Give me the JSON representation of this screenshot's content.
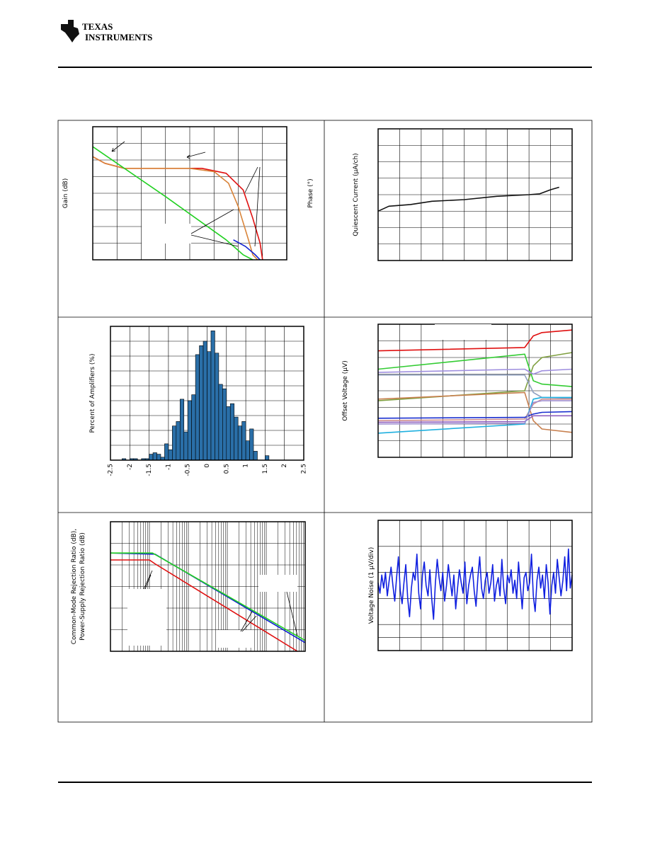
{
  "header": {
    "logo_line1": "TEXAS",
    "logo_line2": "INSTRUMENTS"
  },
  "chart_data": [
    {
      "type": "line",
      "y_label": "Gain (dB)",
      "y2_label": "Phase (°)",
      "xlim": [
        0,
        8
      ],
      "ylim": [
        0,
        8
      ],
      "xticks": [
        0,
        1,
        2,
        3,
        4,
        5,
        6,
        7,
        8
      ],
      "yticks": [
        0,
        1,
        2,
        3,
        4,
        5,
        6,
        7,
        8
      ],
      "grid": true,
      "series": [
        {
          "color": "#e01010",
          "x": [
            0,
            0.5,
            1.3,
            4.5,
            5.5,
            6.2,
            6.6,
            6.9,
            7.0
          ],
          "values": [
            6.2,
            5.8,
            5.5,
            5.5,
            5.2,
            4.2,
            2.5,
            1.0,
            0
          ]
        },
        {
          "color": "#d9843a",
          "x": [
            0,
            0.5,
            1.3,
            4.0,
            5.0,
            5.6,
            6.0,
            6.4,
            6.6,
            6.8
          ],
          "values": [
            6.2,
            5.8,
            5.5,
            5.5,
            5.3,
            4.6,
            3.2,
            1.3,
            0.3,
            0
          ]
        },
        {
          "color": "#1020d0",
          "x": [
            5.8,
            6.3,
            6.7,
            6.9
          ],
          "values": [
            1.2,
            0.8,
            0.3,
            0
          ]
        },
        {
          "color": "#22d022",
          "x": [
            0,
            3,
            5.5,
            6.2,
            6.6
          ],
          "values": [
            6.8,
            3.8,
            1.2,
            0.3,
            0
          ]
        }
      ]
    },
    {
      "type": "line",
      "y_label": "Quiescent Current (μA/ch)",
      "xlim": [
        0,
        9
      ],
      "ylim": [
        0,
        8
      ],
      "xticks": [
        0,
        1,
        2,
        3,
        4,
        5,
        6,
        7,
        8,
        9
      ],
      "yticks": [
        0,
        1,
        2,
        3,
        4,
        5,
        6,
        7,
        8
      ],
      "grid": true,
      "series": [
        {
          "color": "#111111",
          "x": [
            0,
            0.5,
            1.5,
            2.5,
            4,
            5.5,
            7,
            7.5,
            8,
            8.4
          ],
          "values": [
            3.0,
            3.3,
            3.4,
            3.6,
            3.7,
            3.9,
            4.0,
            4.05,
            4.3,
            4.45
          ]
        }
      ]
    },
    {
      "type": "histogram",
      "y_label": "Percent of Amplifiers (%)",
      "color": "#2a6fa8",
      "xlim": [
        -2.5,
        2.5
      ],
      "ylim": [
        0,
        9
      ],
      "xticks": [
        -2.5,
        -2,
        -1.5,
        -1,
        -0.5,
        0,
        0.5,
        1,
        1.5,
        2,
        2.5
      ],
      "xtick_labels": true,
      "yticks": [
        0,
        1,
        2,
        3,
        4,
        5,
        6,
        7,
        8,
        9
      ],
      "grid": true,
      "bins": [
        -2.2,
        -2.1,
        -2.0,
        -1.9,
        -1.8,
        -1.7,
        -1.6,
        -1.5,
        -1.4,
        -1.3,
        -1.2,
        -1.1,
        -1.0,
        -0.9,
        -0.8,
        -0.7,
        -0.6,
        -0.5,
        -0.4,
        -0.3,
        -0.2,
        -0.1,
        0,
        0.1,
        0.2,
        0.3,
        0.4,
        0.5,
        0.6,
        0.7,
        0.8,
        0.9,
        1.0,
        1.1,
        1.2,
        1.3,
        1.4,
        1.5,
        1.6
      ],
      "values": [
        0.1,
        0,
        0.1,
        0.1,
        0,
        0.1,
        0.1,
        0.4,
        0.5,
        0.4,
        0.2,
        1.1,
        0.7,
        2.3,
        2.6,
        4.1,
        1.9,
        4.0,
        4.4,
        7.1,
        7.7,
        8.0,
        7.3,
        8.7,
        7.2,
        5.1,
        4.8,
        3.6,
        3.8,
        2.9,
        2.3,
        2.6,
        1.3,
        2.1,
        0.6,
        0,
        0,
        0.3
      ]
    },
    {
      "type": "line",
      "y_label": "Offset Voltage (μV)",
      "xlim": [
        0,
        9
      ],
      "ylim": [
        0,
        8
      ],
      "xticks": [
        0,
        1,
        2,
        3,
        4,
        5,
        6,
        7,
        8,
        9
      ],
      "yticks": [
        0,
        1,
        2,
        3,
        4,
        5,
        6,
        7,
        8
      ],
      "grid": true,
      "series": [
        {
          "color": "#e01010",
          "x": [
            0,
            6.8,
            7.2,
            7.6,
            9
          ],
          "values": [
            6.4,
            6.6,
            7.3,
            7.5,
            7.65
          ]
        },
        {
          "color": "#33cc33",
          "x": [
            0,
            6.8,
            7.2,
            7.6,
            9
          ],
          "values": [
            5.3,
            6.2,
            4.6,
            4.4,
            4.25
          ]
        },
        {
          "color": "#7f9f3f",
          "x": [
            0,
            6.8,
            7.2,
            7.6,
            9
          ],
          "values": [
            3.4,
            4.0,
            5.5,
            6.0,
            6.3
          ]
        },
        {
          "color": "#9f8fdf",
          "x": [
            0,
            6.8,
            7.2,
            7.6,
            9
          ],
          "values": [
            5.1,
            5.3,
            5.0,
            5.2,
            5.3
          ]
        },
        {
          "color": "#8f9fbf",
          "x": [
            0,
            6.8,
            7.2,
            7.6,
            9
          ],
          "values": [
            4.95,
            4.95,
            3.9,
            3.6,
            3.55
          ]
        },
        {
          "color": "#c8804f",
          "x": [
            0,
            6.8,
            7.2,
            7.6,
            9
          ],
          "values": [
            3.5,
            3.9,
            2.2,
            1.7,
            1.5
          ]
        },
        {
          "color": "#cf8f8f",
          "x": [
            0,
            6.8,
            7.2,
            7.6,
            9
          ],
          "values": [
            2.2,
            2.3,
            3.2,
            3.5,
            3.5
          ]
        },
        {
          "color": "#1a2fcf",
          "x": [
            0,
            6.8,
            7.2,
            7.6,
            9
          ],
          "values": [
            2.35,
            2.4,
            2.6,
            2.7,
            2.75
          ]
        },
        {
          "color": "#8f5fbf",
          "x": [
            0,
            6.8,
            7.2,
            7.6,
            9
          ],
          "values": [
            2.1,
            2.15,
            2.5,
            2.5,
            2.5
          ]
        },
        {
          "color": "#1fb0df",
          "x": [
            0,
            6.8,
            7.2,
            7.6,
            9
          ],
          "values": [
            1.45,
            2.0,
            3.5,
            3.6,
            3.6
          ]
        },
        {
          "color": "#a08fd0",
          "x": [
            0,
            6.8,
            7.2,
            7.6,
            9
          ],
          "values": [
            2.0,
            2.05,
            3.3,
            3.4,
            3.4
          ]
        }
      ]
    },
    {
      "type": "line",
      "y_label": [
        "Common-Mode Rejection Ratio (dB),",
        "Power-Supply Rejection Ratio (dB)"
      ],
      "log_x": true,
      "minor_grid": true,
      "xlim": [
        1,
        100000
      ],
      "ylim": [
        0,
        6
      ],
      "xticks": [
        1,
        10,
        100,
        1000,
        10000,
        100000
      ],
      "yticks": [
        0,
        1,
        2,
        3,
        4,
        5,
        6
      ],
      "grid": true,
      "series": [
        {
          "color": "#e01010",
          "x": [
            1,
            10,
            14,
            63000
          ],
          "values": [
            4.23,
            4.23,
            4.05,
            0
          ]
        },
        {
          "color": "#1020d0",
          "x": [
            1,
            14,
            100000
          ],
          "values": [
            4.55,
            4.5,
            0.4
          ]
        },
        {
          "color": "#22d022",
          "x": [
            1,
            12,
            100000
          ],
          "values": [
            4.55,
            4.55,
            0.5
          ]
        }
      ]
    },
    {
      "type": "line",
      "y_label": "Voltage Noise (1 μV/div)",
      "xlim": [
        0,
        9
      ],
      "ylim": [
        0,
        5
      ],
      "xticks": [
        0,
        1,
        2,
        3,
        4,
        5,
        6,
        7,
        8,
        9
      ],
      "yticks": [
        0,
        0.5,
        1,
        2,
        3,
        4,
        5
      ],
      "grid": true,
      "series": [
        {
          "color": "#1020e0",
          "values": [
            2.6,
            2.2,
            2.9,
            2.4,
            3.0,
            2.1,
            2.7,
            3.2,
            2.5,
            1.9,
            2.8,
            3.6,
            2.3,
            1.8,
            2.6,
            3.3,
            2.0,
            1.3,
            2.4,
            3.0,
            2.7,
            3.7,
            2.2,
            1.6,
            2.9,
            3.4,
            2.5,
            2.1,
            3.1,
            2.0,
            1.2,
            2.6,
            3.5,
            2.8,
            2.3,
            3.0,
            1.9,
            2.5,
            3.3,
            2.7,
            2.1,
            2.9,
            1.6,
            2.4,
            3.1,
            2.6,
            2.2,
            3.4,
            1.8,
            2.5,
            2.9,
            3.2,
            2.3,
            1.7,
            2.8,
            3.6,
            2.4,
            2.0,
            2.7,
            3.0,
            2.2,
            2.6,
            3.3,
            1.9,
            2.5,
            2.8,
            2.1,
            3.5,
            2.4,
            1.8,
            2.9,
            2.6,
            3.1,
            2.2,
            2.7,
            2.0,
            3.4,
            2.5,
            1.6,
            2.8,
            3.0,
            2.3,
            2.6,
            3.7,
            2.1,
            1.5,
            2.7,
            3.2,
            2.4,
            2.9,
            2.0,
            3.3,
            2.6,
            1.4,
            2.5,
            3.0,
            2.2,
            3.5,
            2.8,
            2.1,
            2.7,
            3.6,
            2.3,
            3.9,
            2.4,
            2.9
          ]
        }
      ]
    }
  ]
}
